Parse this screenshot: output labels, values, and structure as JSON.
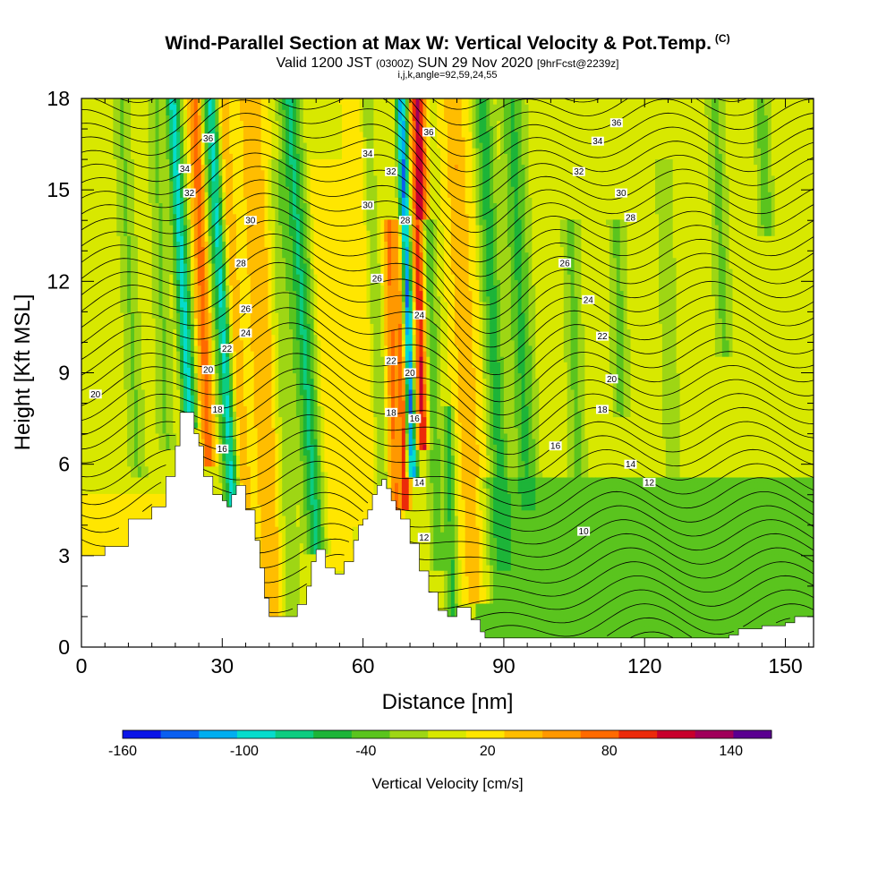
{
  "header": {
    "title": "Wind-Parallel Section at Max W: Vertical Velocity & Pot.Temp.",
    "copyright": "(C)",
    "valid_a": "Valid 1200 JST",
    "valid_z": "(0300Z)",
    "valid_b": "SUN 29 Nov 2020",
    "fcst": "[9hrFcst@2239z]",
    "indices": "i,j,k,angle=92,59,24,55"
  },
  "chart_data": {
    "type": "heatmap",
    "xlabel": "Distance [nm]",
    "ylabel": "Height [Kft MSL]",
    "xlim": [
      0,
      156
    ],
    "ylim": [
      0,
      18
    ],
    "x_ticks": [
      0,
      30,
      60,
      90,
      120,
      150
    ],
    "y_ticks": [
      0,
      3,
      6,
      9,
      12,
      15,
      18
    ],
    "colorbar": {
      "label": "Vertical Velocity [cm/s]",
      "tick_labels": [
        "-160",
        "-100",
        "-40",
        "20",
        "80",
        "140"
      ],
      "tick_values": [
        -160,
        -100,
        -40,
        20,
        80,
        140
      ],
      "bins": [
        -160,
        -140,
        -120,
        -100,
        -80,
        -60,
        -40,
        -20,
        0,
        20,
        40,
        60,
        80,
        100,
        120,
        140,
        160
      ],
      "colors": [
        "#0a14e8",
        "#0a5ff0",
        "#00aef0",
        "#05dccc",
        "#0ccc80",
        "#1db438",
        "#5ac41e",
        "#9ed614",
        "#d8e800",
        "#ffe600",
        "#ffbd00",
        "#ff9800",
        "#ff6a00",
        "#ec2a0a",
        "#c8002c",
        "#a0005a",
        "#5a0090"
      ]
    },
    "terrain_profile_kft": [
      [
        0,
        3
      ],
      [
        5,
        3.3
      ],
      [
        10,
        4.2
      ],
      [
        15,
        4.6
      ],
      [
        18,
        5.6
      ],
      [
        20,
        6.6
      ],
      [
        21,
        7.7
      ],
      [
        23,
        7.7
      ],
      [
        24,
        7.0
      ],
      [
        25,
        6.6
      ],
      [
        26,
        5.6
      ],
      [
        28,
        5.0
      ],
      [
        30,
        4.8
      ],
      [
        31,
        4.6
      ],
      [
        32,
        5.0
      ],
      [
        33,
        5.3
      ],
      [
        35,
        4.5
      ],
      [
        37,
        3.5
      ],
      [
        38,
        2.6
      ],
      [
        39,
        1.6
      ],
      [
        40,
        1.0
      ],
      [
        44,
        1.0
      ],
      [
        46,
        1.4
      ],
      [
        48,
        2.0
      ],
      [
        49,
        2.8
      ],
      [
        50,
        3.2
      ],
      [
        52,
        2.6
      ],
      [
        54,
        2.4
      ],
      [
        56,
        2.8
      ],
      [
        58,
        3.5
      ],
      [
        59,
        4.0
      ],
      [
        60,
        4.2
      ],
      [
        61,
        4.5
      ],
      [
        62,
        5.0
      ],
      [
        63,
        5.3
      ],
      [
        64,
        5.5
      ],
      [
        65,
        5.2
      ],
      [
        66,
        4.8
      ],
      [
        67,
        4.5
      ],
      [
        68,
        4.2
      ],
      [
        70,
        3.4
      ],
      [
        72,
        2.5
      ],
      [
        74,
        1.8
      ],
      [
        76,
        1.2
      ],
      [
        78,
        1.0
      ],
      [
        80,
        1.3
      ],
      [
        81,
        1.3
      ],
      [
        83,
        0.9
      ],
      [
        85,
        0.5
      ],
      [
        86,
        0.3
      ],
      [
        90,
        0.3
      ],
      [
        100,
        0.3
      ],
      [
        110,
        0.3
      ],
      [
        120,
        0.3
      ],
      [
        130,
        0.3
      ],
      [
        138,
        0.4
      ],
      [
        140,
        0.6
      ],
      [
        145,
        0.7
      ],
      [
        150,
        0.8
      ],
      [
        152,
        1.0
      ],
      [
        156,
        1.0
      ]
    ],
    "contour_labels": [
      {
        "text": "20",
        "x": 3,
        "y": 8.3
      },
      {
        "text": "36",
        "x": 27,
        "y": 16.7
      },
      {
        "text": "34",
        "x": 22,
        "y": 15.7
      },
      {
        "text": "32",
        "x": 23,
        "y": 14.9
      },
      {
        "text": "30",
        "x": 36,
        "y": 14.0
      },
      {
        "text": "28",
        "x": 34,
        "y": 12.6
      },
      {
        "text": "26",
        "x": 35,
        "y": 11.1
      },
      {
        "text": "24",
        "x": 35,
        "y": 10.3
      },
      {
        "text": "22",
        "x": 31,
        "y": 9.8
      },
      {
        "text": "20",
        "x": 27,
        "y": 9.1
      },
      {
        "text": "18",
        "x": 29,
        "y": 7.8
      },
      {
        "text": "16",
        "x": 30,
        "y": 6.5
      },
      {
        "text": "34",
        "x": 61,
        "y": 16.2
      },
      {
        "text": "32",
        "x": 66,
        "y": 15.6
      },
      {
        "text": "30",
        "x": 61,
        "y": 14.5
      },
      {
        "text": "28",
        "x": 69,
        "y": 14.0
      },
      {
        "text": "26",
        "x": 63,
        "y": 12.1
      },
      {
        "text": "24",
        "x": 72,
        "y": 10.9
      },
      {
        "text": "22",
        "x": 66,
        "y": 9.4
      },
      {
        "text": "20",
        "x": 70,
        "y": 9.0
      },
      {
        "text": "18",
        "x": 66,
        "y": 7.7
      },
      {
        "text": "16",
        "x": 71,
        "y": 7.5
      },
      {
        "text": "14",
        "x": 72,
        "y": 5.4
      },
      {
        "text": "12",
        "x": 73,
        "y": 3.6
      },
      {
        "text": "36",
        "x": 74,
        "y": 16.9
      },
      {
        "text": "36",
        "x": 114,
        "y": 17.2
      },
      {
        "text": "34",
        "x": 110,
        "y": 16.6
      },
      {
        "text": "32",
        "x": 106,
        "y": 15.6
      },
      {
        "text": "30",
        "x": 115,
        "y": 14.9
      },
      {
        "text": "28",
        "x": 117,
        "y": 14.1
      },
      {
        "text": "26",
        "x": 103,
        "y": 12.6
      },
      {
        "text": "24",
        "x": 108,
        "y": 11.4
      },
      {
        "text": "22",
        "x": 111,
        "y": 10.2
      },
      {
        "text": "20",
        "x": 113,
        "y": 8.8
      },
      {
        "text": "18",
        "x": 111,
        "y": 7.8
      },
      {
        "text": "16",
        "x": 101,
        "y": 6.6
      },
      {
        "text": "14",
        "x": 117,
        "y": 6.0
      },
      {
        "text": "12",
        "x": 121,
        "y": 5.4
      },
      {
        "text": "10",
        "x": 107,
        "y": 3.8
      }
    ],
    "velocity_features": [
      {
        "x": 23,
        "top": 18,
        "bottom": 7.7,
        "slope": -0.35,
        "w": 2.4,
        "v": -100
      },
      {
        "x": 27,
        "top": 18,
        "bottom": 6.5,
        "slope": -0.25,
        "w": 2.2,
        "v": 100
      },
      {
        "x": 32,
        "top": 18,
        "bottom": 5.0,
        "slope": -0.35,
        "w": 2.6,
        "v": -90
      },
      {
        "x": 35,
        "top": 18,
        "bottom": 4.8,
        "slope": -0.35,
        "w": 2.0,
        "v": 60
      },
      {
        "x": 41,
        "top": 18,
        "bottom": 1.0,
        "slope": -0.3,
        "w": 4.5,
        "v": 60
      },
      {
        "x": 45,
        "top": 16,
        "bottom": 1.0,
        "slope": -0.2,
        "w": 3.0,
        "v": -20
      },
      {
        "x": 50,
        "top": 18,
        "bottom": 3.5,
        "slope": -0.4,
        "w": 3.5,
        "v": -70
      },
      {
        "x": 55,
        "top": 16,
        "bottom": 3.0,
        "slope": -0.25,
        "w": 4.0,
        "v": 40
      },
      {
        "x": 61,
        "top": 18,
        "bottom": 4.5,
        "slope": -0.2,
        "w": 4.0,
        "v": 40
      },
      {
        "x": 64,
        "top": 18,
        "bottom": 5.5,
        "slope": -0.25,
        "w": 2.0,
        "v": -20
      },
      {
        "x": 67,
        "top": 14,
        "bottom": 4.5,
        "slope": -0.15,
        "w": 2.0,
        "v": 90
      },
      {
        "x": 69,
        "top": 14,
        "bottom": 5.0,
        "slope": -0.1,
        "w": 1.5,
        "v": 135
      },
      {
        "x": 70.5,
        "top": 18,
        "bottom": 6.0,
        "slope": -0.2,
        "w": 1.8,
        "v": -130
      },
      {
        "x": 73,
        "top": 18,
        "bottom": 7.0,
        "slope": -0.12,
        "w": 2.4,
        "v": 150
      },
      {
        "x": 76,
        "top": 14,
        "bottom": 3.0,
        "slope": -0.2,
        "w": 2.5,
        "v": -40
      },
      {
        "x": 79,
        "top": 8,
        "bottom": 1.0,
        "slope": -0.1,
        "w": 2.0,
        "v": -50
      },
      {
        "x": 84,
        "top": 18,
        "bottom": 2.0,
        "slope": -0.3,
        "w": 4.0,
        "v": 60
      },
      {
        "x": 90,
        "top": 18,
        "bottom": 3.0,
        "slope": -0.3,
        "w": 3.0,
        "v": -60
      },
      {
        "x": 95,
        "top": 18,
        "bottom": 5.0,
        "slope": -0.25,
        "w": 4.0,
        "v": -50
      },
      {
        "x": 106,
        "top": 14,
        "bottom": 5.0,
        "slope": -0.2,
        "w": 3.0,
        "v": -30
      },
      {
        "x": 115,
        "top": 14,
        "bottom": 8.0,
        "slope": -0.15,
        "w": 3.0,
        "v": -30
      },
      {
        "x": 126,
        "top": 16,
        "bottom": 6.0,
        "slope": -0.2,
        "w": 3.0,
        "v": -20
      },
      {
        "x": 137,
        "top": 18,
        "bottom": 10.0,
        "slope": -0.25,
        "w": 3.0,
        "v": -30
      },
      {
        "x": 146,
        "top": 18,
        "bottom": 14.0,
        "slope": -0.3,
        "w": 2.5,
        "v": -40
      },
      {
        "x": 12,
        "top": 18,
        "bottom": 6.0,
        "slope": -0.3,
        "w": 3.0,
        "v": -25
      },
      {
        "x": 18,
        "top": 18,
        "bottom": 7.0,
        "slope": -0.2,
        "w": 3.0,
        "v": -25
      }
    ],
    "lower_layer_top_kft": 5.6,
    "lower_layer_velocity": -25
  }
}
